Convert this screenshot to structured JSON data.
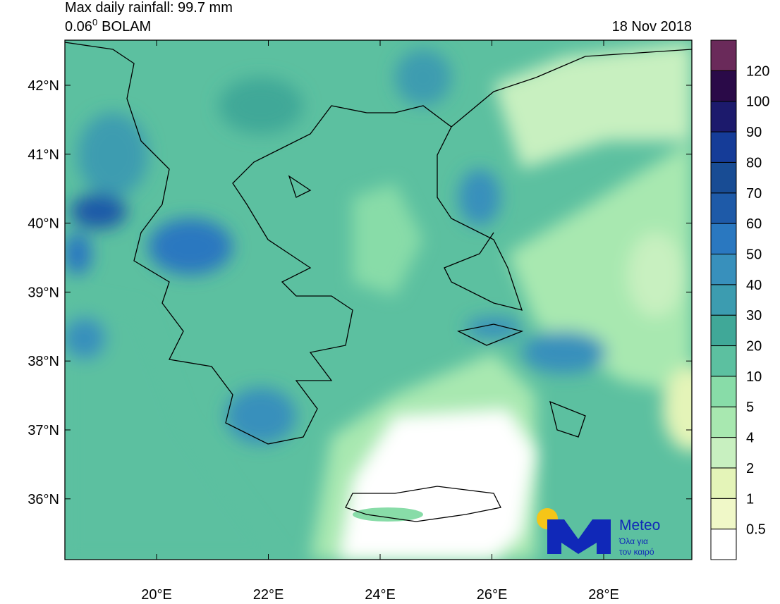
{
  "header": {
    "title": "Max daily rainfall: 99.7 mm",
    "resolution": "0.06",
    "degree": "0",
    "model": "BOLAM",
    "date": "18 Nov 2018"
  },
  "map": {
    "lat_labels": [
      "42°N",
      "41°N",
      "40°N",
      "39°N",
      "38°N",
      "37°N",
      "36°N"
    ],
    "lon_labels": [
      "20°E",
      "22°E",
      "24°E",
      "26°E",
      "28°E"
    ]
  },
  "colorbar": {
    "levels": [
      0.5,
      1,
      2,
      4,
      5,
      10,
      20,
      30,
      40,
      50,
      60,
      70,
      80,
      90,
      100,
      120
    ],
    "colors": [
      "#ffffff",
      "#f0f8c8",
      "#e4f4b8",
      "#c8f0c0",
      "#a8e8b0",
      "#88dca8",
      "#5cc0a0",
      "#40a898",
      "#3c9cb0",
      "#3890bc",
      "#2a78c0",
      "#1e5aa8",
      "#184c94",
      "#153c98",
      "#1c1a6c",
      "#2a0a48",
      "#6a2a5a"
    ]
  },
  "logo": {
    "name": "Meteo",
    "tagline_1": "Όλα για",
    "tagline_2": "τον καιρό"
  }
}
